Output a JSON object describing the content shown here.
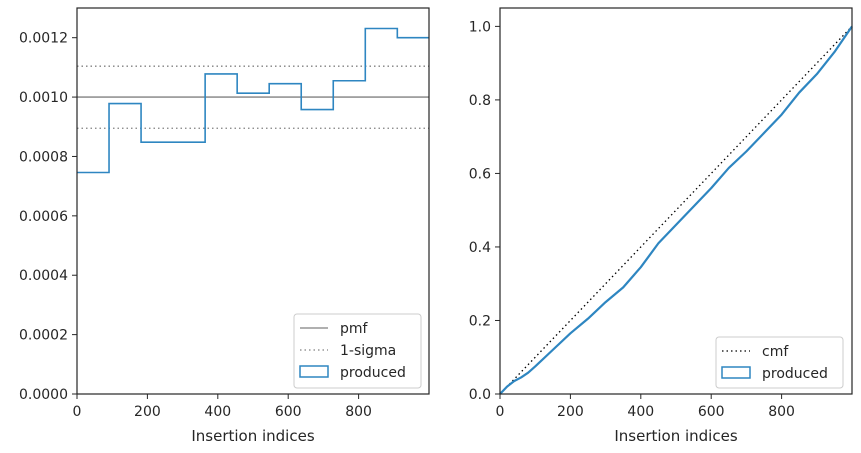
{
  "chart_data": [
    {
      "type": "step",
      "xlabel": "Insertion indices",
      "ylabel": "",
      "xlim": [
        0,
        1000
      ],
      "ylim": [
        0,
        0.0013
      ],
      "xticks": [
        "0",
        "200",
        "400",
        "600",
        "800"
      ],
      "xtick_values": [
        0,
        200,
        400,
        600,
        800
      ],
      "yticks": [
        "0.0000",
        "0.0002",
        "0.0004",
        "0.0006",
        "0.0008",
        "0.0010",
        "0.0012"
      ],
      "ytick_values": [
        0,
        0.0002,
        0.0004,
        0.0006,
        0.0008,
        0.001,
        0.0012
      ],
      "bin_edges": [
        0,
        91,
        182,
        273,
        364,
        455,
        546,
        637,
        728,
        819,
        910,
        1000
      ],
      "produced_values": [
        0.000746,
        0.000978,
        0.000848,
        0.000848,
        0.001078,
        0.001013,
        0.001045,
        0.000958,
        0.001055,
        0.001231,
        0.0012
      ],
      "pmf_value": 0.001,
      "sigma_upper": 0.001104,
      "sigma_lower": 0.000895,
      "grid": false,
      "legend_position": "lower-right",
      "legend": [
        {
          "label": "pmf",
          "style": "solid",
          "color": "#808080"
        },
        {
          "label": "1-sigma",
          "style": "dotted",
          "color": "#808080"
        },
        {
          "label": "produced",
          "style": "box",
          "color": "#2e86c1"
        }
      ]
    },
    {
      "type": "line",
      "xlabel": "Insertion indices",
      "ylabel": "",
      "xlim": [
        0,
        1000
      ],
      "ylim": [
        0,
        1.05
      ],
      "xticks": [
        "0",
        "200",
        "400",
        "600",
        "800"
      ],
      "xtick_values": [
        0,
        200,
        400,
        600,
        800
      ],
      "yticks": [
        "0.0",
        "0.2",
        "0.4",
        "0.6",
        "0.8",
        "1.0"
      ],
      "ytick_values": [
        0,
        0.2,
        0.4,
        0.6,
        0.8,
        1.0
      ],
      "cmf": {
        "x": [
          0,
          1000
        ],
        "y": [
          0,
          1.0
        ]
      },
      "produced": {
        "x": [
          0,
          20,
          40,
          60,
          80,
          100,
          150,
          200,
          250,
          300,
          350,
          400,
          450,
          500,
          550,
          600,
          650,
          700,
          750,
          800,
          850,
          900,
          950,
          1000
        ],
        "y": [
          0,
          0.02,
          0.035,
          0.045,
          0.058,
          0.075,
          0.12,
          0.165,
          0.205,
          0.25,
          0.29,
          0.345,
          0.41,
          0.46,
          0.51,
          0.56,
          0.615,
          0.66,
          0.71,
          0.76,
          0.82,
          0.87,
          0.93,
          1.0
        ]
      },
      "grid": false,
      "legend_position": "lower-right",
      "legend": [
        {
          "label": "cmf",
          "style": "dotted",
          "color": "#000000"
        },
        {
          "label": "produced",
          "style": "box",
          "color": "#2e86c1"
        }
      ]
    }
  ]
}
